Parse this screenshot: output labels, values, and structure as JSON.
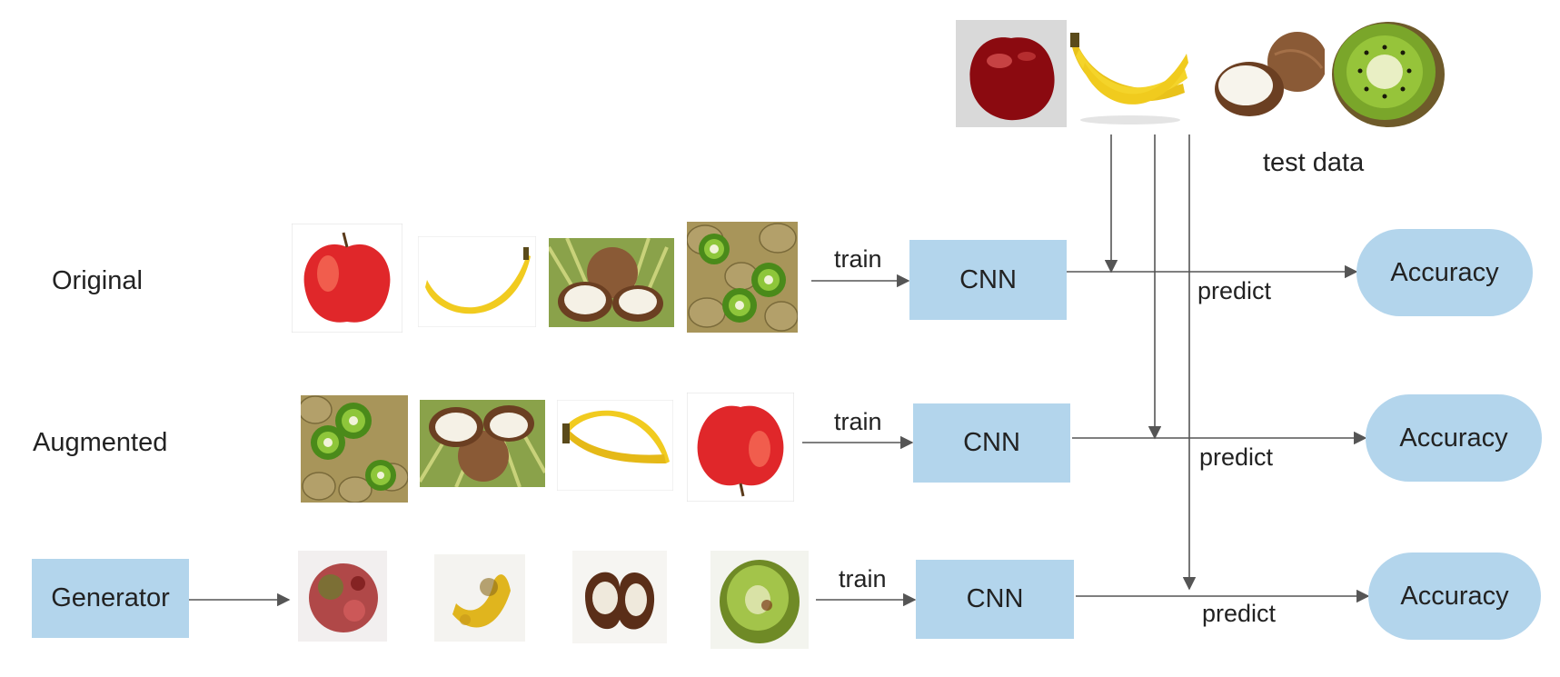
{
  "rows": {
    "original": {
      "label": "Original"
    },
    "augmented": {
      "label": "Augmented"
    },
    "generated": {
      "label": "Generator"
    }
  },
  "test_data": {
    "label": "test data"
  },
  "edges": {
    "train": "train",
    "predict": "predict"
  },
  "nodes": {
    "cnn": "CNN",
    "accuracy": "Accuracy"
  },
  "images": {
    "test": [
      "cherry",
      "banana",
      "coconut",
      "kiwi"
    ],
    "original": [
      "apple",
      "banana",
      "coconut",
      "kiwi"
    ],
    "augmented": [
      "kiwi",
      "coconut",
      "banana",
      "apple"
    ],
    "generated": [
      "apple",
      "banana",
      "coconut",
      "kiwi"
    ]
  },
  "colors": {
    "node_fill": "#b3d5ec",
    "arrow": "#555555"
  }
}
